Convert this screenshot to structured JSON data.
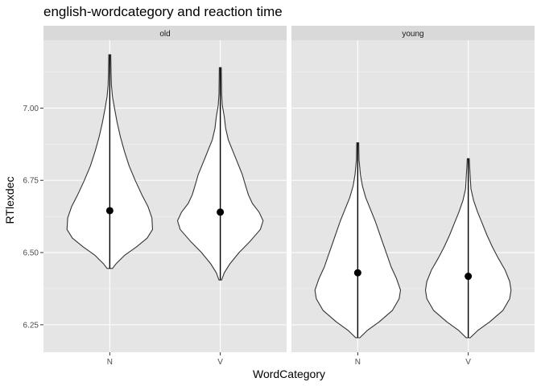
{
  "chart_data": {
    "type": "violin",
    "title": "english-wordcategory and reaction time",
    "xlabel": "WordCategory",
    "ylabel": "RTlexdec",
    "categories": [
      "N",
      "V"
    ],
    "ylim": [
      6.155,
      7.235
    ],
    "yticks": [
      6.25,
      6.5,
      6.75,
      7.0
    ],
    "ytick_labels": [
      "6.25",
      "6.50",
      "6.75",
      "7.00"
    ],
    "grid": true,
    "panel_background": "#e5e5e5",
    "strip_background": "#d9d9d9",
    "violin_fill": "#ffffff",
    "line_color": "#000000",
    "facets": [
      {
        "label": "old",
        "violins": [
          {
            "category": "N",
            "mean": 6.645,
            "min": 6.445,
            "max": 7.185,
            "profile": [
              [
                6.445,
                0.04
              ],
              [
                6.46,
                0.09
              ],
              [
                6.49,
                0.22
              ],
              [
                6.52,
                0.4
              ],
              [
                6.55,
                0.56
              ],
              [
                6.58,
                0.64
              ],
              [
                6.62,
                0.63
              ],
              [
                6.66,
                0.57
              ],
              [
                6.7,
                0.48
              ],
              [
                6.75,
                0.38
              ],
              [
                6.8,
                0.29
              ],
              [
                6.85,
                0.22
              ],
              [
                6.9,
                0.16
              ],
              [
                6.95,
                0.11
              ],
              [
                7.0,
                0.07
              ],
              [
                7.04,
                0.04
              ],
              [
                7.08,
                0.025
              ],
              [
                7.12,
                0.02
              ],
              [
                7.185,
                0.015
              ]
            ]
          },
          {
            "category": "V",
            "mean": 6.64,
            "min": 6.405,
            "max": 7.14,
            "profile": [
              [
                6.405,
                0.02
              ],
              [
                6.43,
                0.06
              ],
              [
                6.46,
                0.14
              ],
              [
                6.5,
                0.28
              ],
              [
                6.54,
                0.45
              ],
              [
                6.58,
                0.6
              ],
              [
                6.61,
                0.64
              ],
              [
                6.64,
                0.58
              ],
              [
                6.67,
                0.48
              ],
              [
                6.7,
                0.42
              ],
              [
                6.73,
                0.38
              ],
              [
                6.77,
                0.33
              ],
              [
                6.81,
                0.26
              ],
              [
                6.85,
                0.19
              ],
              [
                6.89,
                0.12
              ],
              [
                6.93,
                0.08
              ],
              [
                6.97,
                0.06
              ],
              [
                7.01,
                0.03
              ],
              [
                7.05,
                0.02
              ],
              [
                7.14,
                0.015
              ]
            ]
          }
        ]
      },
      {
        "label": "young",
        "violins": [
          {
            "category": "N",
            "mean": 6.43,
            "min": 6.205,
            "max": 6.88,
            "profile": [
              [
                6.205,
                0.03
              ],
              [
                6.23,
                0.14
              ],
              [
                6.26,
                0.32
              ],
              [
                6.3,
                0.52
              ],
              [
                6.34,
                0.62
              ],
              [
                6.37,
                0.64
              ],
              [
                6.41,
                0.58
              ],
              [
                6.45,
                0.5
              ],
              [
                6.49,
                0.44
              ],
              [
                6.53,
                0.38
              ],
              [
                6.57,
                0.32
              ],
              [
                6.61,
                0.26
              ],
              [
                6.65,
                0.19
              ],
              [
                6.69,
                0.12
              ],
              [
                6.73,
                0.07
              ],
              [
                6.77,
                0.04
              ],
              [
                6.82,
                0.02
              ],
              [
                6.88,
                0.015
              ]
            ]
          },
          {
            "category": "V",
            "mean": 6.418,
            "min": 6.205,
            "max": 6.825,
            "profile": [
              [
                6.205,
                0.03
              ],
              [
                6.23,
                0.14
              ],
              [
                6.26,
                0.32
              ],
              [
                6.3,
                0.52
              ],
              [
                6.34,
                0.62
              ],
              [
                6.37,
                0.64
              ],
              [
                6.4,
                0.62
              ],
              [
                6.44,
                0.55
              ],
              [
                6.48,
                0.45
              ],
              [
                6.52,
                0.36
              ],
              [
                6.56,
                0.28
              ],
              [
                6.6,
                0.21
              ],
              [
                6.64,
                0.14
              ],
              [
                6.68,
                0.08
              ],
              [
                6.72,
                0.04
              ],
              [
                6.76,
                0.03
              ],
              [
                6.8,
                0.02
              ],
              [
                6.825,
                0.015
              ]
            ]
          }
        ]
      }
    ]
  }
}
